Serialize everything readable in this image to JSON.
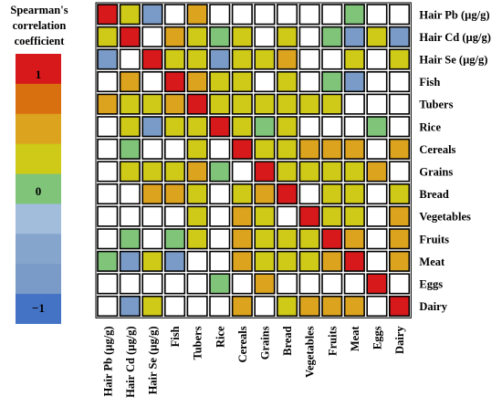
{
  "legend": {
    "title_lines": [
      "Spearman's",
      "correlation",
      "coefficient"
    ],
    "labels": {
      "top": "1",
      "middle": "0",
      "bottom": "−1"
    },
    "steps": [
      "#d7191c",
      "#d9700f",
      "#dca31e",
      "#cfc918",
      "#80c47a",
      "#a2bcdb",
      "#86a5cc",
      "#7a9bc7",
      "#4472c4"
    ]
  },
  "colors": {
    "r": "#d7191c",
    "o": "#dca31e",
    "y": "#cfc918",
    "g": "#80c47a",
    "b": "#7a9bc7",
    "w": "#ffffff"
  },
  "chart_data": {
    "type": "heatmap",
    "title": "",
    "rows": [
      "Hair Pb (µg/g)",
      "Hair Cd (µg/g)",
      "Hair Se (µg/g)",
      "Fish",
      "Tubers",
      "Rice",
      "Cereals",
      "Grains",
      "Bread",
      "Vegetables",
      "Fruits",
      "Meat",
      "Eggs",
      "Dairy"
    ],
    "columns": [
      "Hair Pb (µg/g)",
      "Hair Cd (µg/g)",
      "Hair Se (µg/g)",
      "Fish",
      "Tubers",
      "Rice",
      "Cereals",
      "Grains",
      "Bread",
      "Vegetables",
      "Fruits",
      "Meat",
      "Eggs",
      "Dairy"
    ],
    "value_scale": [
      -1,
      1
    ],
    "cells": [
      [
        "r",
        "y",
        "b",
        "w",
        "o",
        "w",
        "w",
        "w",
        "w",
        "w",
        "w",
        "g",
        "w",
        "w"
      ],
      [
        "y",
        "r",
        "w",
        "o",
        "y",
        "g",
        "y",
        "w",
        "y",
        "w",
        "g",
        "b",
        "y",
        "b"
      ],
      [
        "b",
        "w",
        "r",
        "y",
        "y",
        "b",
        "y",
        "y",
        "o",
        "w",
        "w",
        "y",
        "w",
        "y"
      ],
      [
        "w",
        "o",
        "w",
        "r",
        "o",
        "y",
        "y",
        "w",
        "y",
        "w",
        "g",
        "b",
        "w",
        "w"
      ],
      [
        "o",
        "y",
        "y",
        "o",
        "r",
        "y",
        "y",
        "y",
        "y",
        "y",
        "y",
        "w",
        "w",
        "w"
      ],
      [
        "w",
        "y",
        "b",
        "y",
        "y",
        "r",
        "y",
        "g",
        "y",
        "w",
        "w",
        "w",
        "g",
        "w"
      ],
      [
        "w",
        "g",
        "w",
        "w",
        "y",
        "w",
        "r",
        "y",
        "y",
        "o",
        "o",
        "o",
        "w",
        "o"
      ],
      [
        "w",
        "y",
        "y",
        "y",
        "o",
        "g",
        "w",
        "r",
        "y",
        "y",
        "y",
        "y",
        "o",
        "w"
      ],
      [
        "w",
        "w",
        "o",
        "o",
        "y",
        "w",
        "y",
        "o",
        "r",
        "w",
        "y",
        "y",
        "w",
        "y"
      ],
      [
        "w",
        "w",
        "w",
        "w",
        "y",
        "w",
        "o",
        "y",
        "w",
        "r",
        "y",
        "y",
        "w",
        "o"
      ],
      [
        "w",
        "g",
        "w",
        "g",
        "y",
        "w",
        "o",
        "y",
        "y",
        "y",
        "r",
        "o",
        "w",
        "o"
      ],
      [
        "g",
        "b",
        "y",
        "b",
        "w",
        "w",
        "o",
        "y",
        "y",
        "y",
        "o",
        "r",
        "w",
        "o"
      ],
      [
        "w",
        "w",
        "w",
        "w",
        "w",
        "g",
        "w",
        "o",
        "w",
        "w",
        "w",
        "w",
        "r",
        "w"
      ],
      [
        "w",
        "b",
        "y",
        "w",
        "w",
        "w",
        "o",
        "w",
        "y",
        "o",
        "o",
        "o",
        "w",
        "r"
      ]
    ]
  }
}
